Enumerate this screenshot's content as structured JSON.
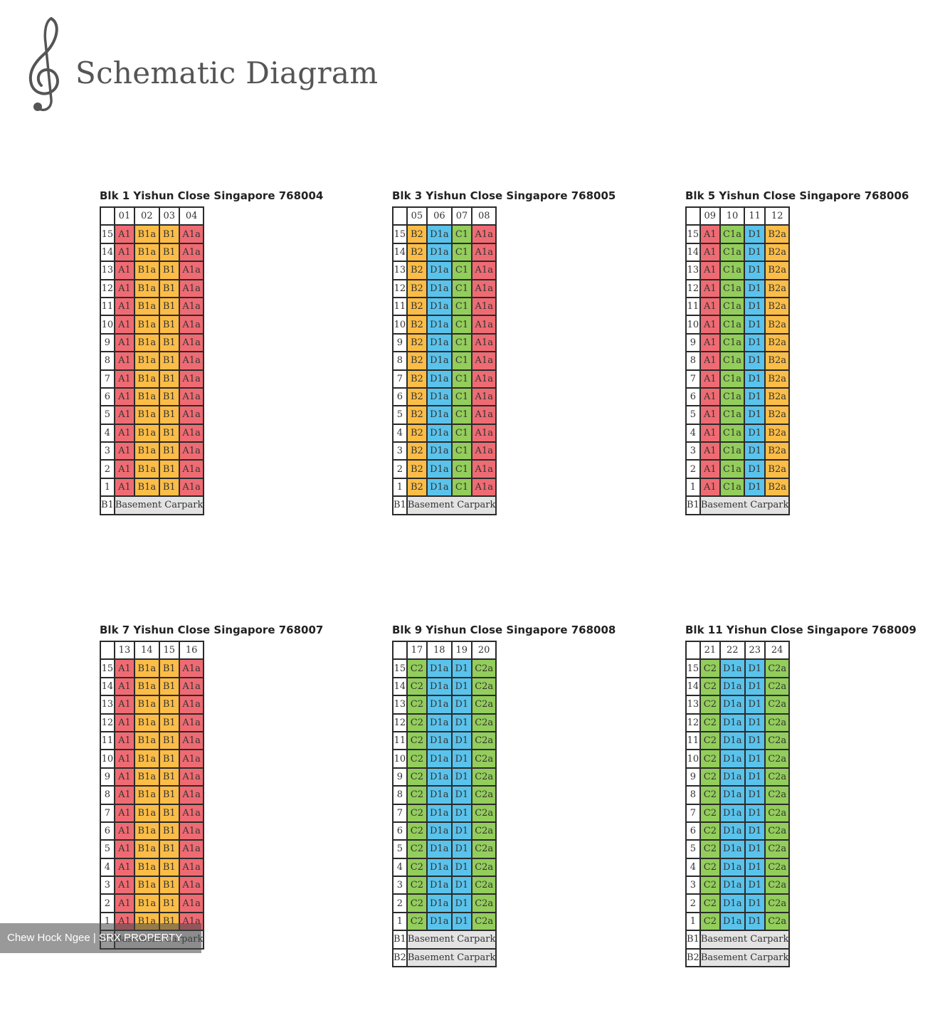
{
  "header": {
    "title": "Schematic Diagram",
    "logo_icon": "treble-clef-icon"
  },
  "colors": {
    "A": "#ef6b73",
    "B": "#fbbd47",
    "C": "#93cd5b",
    "D": "#5ac3ec",
    "basement": "#e3e3e3"
  },
  "floors": [
    "15",
    "14",
    "13",
    "12",
    "11",
    "10",
    "9",
    "8",
    "7",
    "6",
    "5",
    "4",
    "3",
    "2",
    "1"
  ],
  "blocks": [
    {
      "title": "Blk 1 Yishun Close Singapore 768004",
      "units": [
        "01",
        "02",
        "03",
        "04"
      ],
      "types": [
        "A1",
        "B1a",
        "B1",
        "A1a"
      ],
      "basements": [
        {
          "level": "B1",
          "label": "Basement Carpark"
        }
      ]
    },
    {
      "title": "Blk 3 Yishun Close Singapore 768005",
      "units": [
        "05",
        "06",
        "07",
        "08"
      ],
      "types": [
        "B2",
        "D1a",
        "C1",
        "A1a"
      ],
      "basements": [
        {
          "level": "B1",
          "label": "Basement Carpark"
        }
      ]
    },
    {
      "title": "Blk 5 Yishun Close Singapore 768006",
      "units": [
        "09",
        "10",
        "11",
        "12"
      ],
      "types": [
        "A1",
        "C1a",
        "D1",
        "B2a"
      ],
      "basements": [
        {
          "level": "B1",
          "label": "Basement Carpark"
        }
      ]
    },
    {
      "title": "Blk 7 Yishun Close Singapore 768007",
      "units": [
        "13",
        "14",
        "15",
        "16"
      ],
      "types": [
        "A1",
        "B1a",
        "B1",
        "A1a"
      ],
      "basements": [
        {
          "level": "B1",
          "label": "Basement Carpark"
        }
      ]
    },
    {
      "title": "Blk 9 Yishun Close Singapore 768008",
      "units": [
        "17",
        "18",
        "19",
        "20"
      ],
      "types": [
        "C2",
        "D1a",
        "D1",
        "C2a"
      ],
      "basements": [
        {
          "level": "B1",
          "label": "Basement Carpark"
        },
        {
          "level": "B2",
          "label": "Basement Carpark"
        }
      ]
    },
    {
      "title": "Blk 11 Yishun Close Singapore 768009",
      "units": [
        "21",
        "22",
        "23",
        "24"
      ],
      "types": [
        "C2",
        "D1a",
        "D1",
        "C2a"
      ],
      "basements": [
        {
          "level": "B1",
          "label": "Basement Carpark"
        },
        {
          "level": "B2",
          "label": "Basement Carpark"
        }
      ]
    }
  ],
  "watermark": "Chew Hock Ngee | SRX PROPERTY"
}
